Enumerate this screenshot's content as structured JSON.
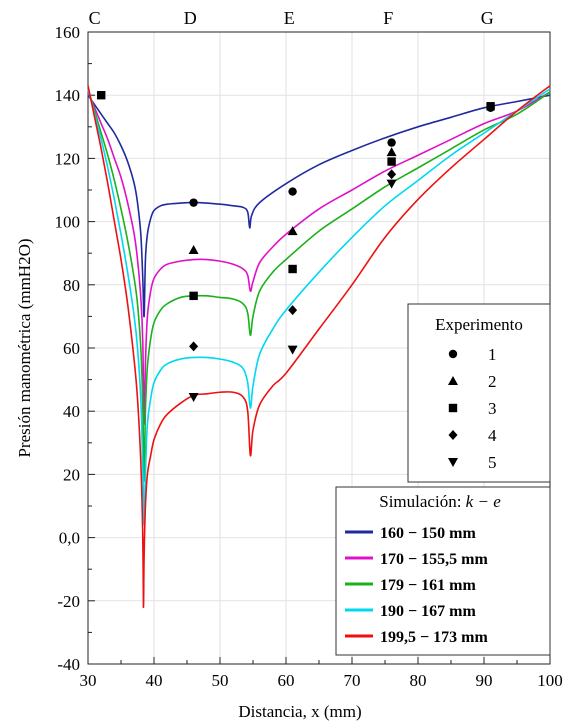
{
  "chart_data": {
    "type": "line",
    "xlabel": "Distancia, x  (mm)",
    "ylabel": "Presión manométrica  (mmH2O)",
    "xlim": [
      30,
      100
    ],
    "ylim": [
      -40,
      160
    ],
    "x_ticks": [
      30,
      40,
      50,
      60,
      70,
      80,
      90,
      100
    ],
    "y_ticks": [
      -40,
      -20,
      0,
      20,
      40,
      60,
      80,
      100,
      120,
      140,
      160
    ],
    "x_tick_labels": [
      "30",
      "40",
      "50",
      "60",
      "70",
      "80",
      "90",
      "100"
    ],
    "y_tick_labels": [
      "-40",
      "-20",
      "0,0",
      "20",
      "40",
      "60",
      "80",
      "100",
      "120",
      "140",
      "160"
    ],
    "section_labels": [
      {
        "label": "C",
        "x": 31
      },
      {
        "label": "D",
        "x": 45.5
      },
      {
        "label": "E",
        "x": 60.5
      },
      {
        "label": "F",
        "x": 75.5
      },
      {
        "label": "G",
        "x": 90.5
      }
    ],
    "grid": true,
    "experiment_legend": {
      "title": "Experimento",
      "placement": "right",
      "entries": [
        {
          "label": "1",
          "marker": "circle"
        },
        {
          "label": "2",
          "marker": "triangle-up"
        },
        {
          "label": "3",
          "marker": "square"
        },
        {
          "label": "4",
          "marker": "diamond"
        },
        {
          "label": "5",
          "marker": "triangle-down"
        }
      ]
    },
    "simulation_legend": {
      "title_text": "Simulación: ",
      "title_math": "k − e",
      "placement": "bottom-right"
    },
    "series": [
      {
        "name": "160 − 150 mm",
        "color": "#1f2a9e",
        "x": [
          30,
          31,
          32,
          33,
          34,
          35,
          36,
          37,
          37.5,
          38,
          38.3,
          38.5,
          38.7,
          39,
          39.5,
          40,
          41,
          42,
          43,
          45,
          47,
          50,
          52,
          53.5,
          54.2,
          54.5,
          54.8,
          56,
          60,
          65,
          70,
          75,
          80,
          85,
          90,
          95,
          100
        ],
        "y": [
          140,
          137,
          134,
          131,
          128,
          124,
          119,
          112,
          106,
          96,
          82,
          70,
          88,
          96,
          101,
          103.5,
          105,
          105.5,
          105.7,
          106,
          106,
          105.5,
          105,
          104.5,
          103,
          98,
          102,
          106,
          112,
          118,
          122.5,
          126.5,
          130,
          133,
          136,
          138,
          140
        ]
      },
      {
        "name": "170 − 155,5 mm",
        "color": "#e010c8",
        "x": [
          30,
          31,
          32,
          33,
          34,
          35,
          36,
          37,
          37.5,
          38,
          38.3,
          38.5,
          38.7,
          39,
          39.5,
          40,
          41,
          42,
          44,
          46,
          48,
          50,
          52,
          53.5,
          54.2,
          54.6,
          55,
          56,
          58,
          60,
          65,
          70,
          75,
          80,
          85,
          90,
          95,
          100
        ],
        "y": [
          141,
          136,
          131,
          126,
          120,
          114,
          106,
          96,
          88,
          76,
          62,
          36,
          55,
          70,
          78,
          82,
          85,
          86.5,
          87.5,
          88,
          88,
          87.5,
          86.5,
          85,
          83,
          78,
          81,
          87,
          92,
          96,
          104,
          110,
          116,
          121,
          126,
          131,
          135,
          141
        ]
      },
      {
        "name": "179 − 161 mm",
        "color": "#1ab21a",
        "x": [
          30,
          31,
          32,
          33,
          34,
          35,
          36,
          37,
          37.5,
          38,
          38.3,
          38.5,
          38.7,
          39,
          39.5,
          40,
          41,
          42,
          44,
          46,
          48,
          50,
          52,
          53.5,
          54.2,
          54.6,
          55,
          56,
          58,
          60,
          65,
          70,
          75,
          80,
          85,
          90,
          95,
          100
        ],
        "y": [
          142,
          135,
          128,
          121,
          113,
          104,
          94,
          82,
          74,
          60,
          42,
          18,
          40,
          54,
          63,
          68,
          72,
          74,
          76,
          76.5,
          76.5,
          76,
          75.5,
          74,
          71,
          64,
          70,
          78,
          84,
          88,
          97,
          104,
          111,
          117,
          123,
          129,
          134,
          141
        ]
      },
      {
        "name": "190 − 167 mm",
        "color": "#00d8f0",
        "x": [
          30,
          31,
          32,
          33,
          34,
          35,
          36,
          37,
          37.5,
          38,
          38.3,
          38.5,
          38.7,
          39,
          39.5,
          40,
          41,
          42,
          44,
          46,
          48,
          50,
          52,
          53.5,
          54.2,
          54.6,
          55,
          56,
          58,
          60,
          65,
          70,
          75,
          80,
          85,
          90,
          95,
          100
        ],
        "y": [
          142,
          134,
          126,
          117,
          107,
          96,
          84,
          70,
          60,
          44,
          22,
          4,
          20,
          36,
          44,
          49,
          53,
          55,
          56.5,
          57,
          57,
          56.5,
          55.5,
          53.5,
          49,
          41,
          48,
          58,
          66,
          72,
          84,
          95,
          105,
          113,
          121,
          128,
          135,
          142
        ]
      },
      {
        "name": "199,5 − 173 mm",
        "color": "#ee1010",
        "x": [
          30,
          31,
          32,
          33,
          34,
          35,
          36,
          37,
          37.5,
          38,
          38.3,
          38.4,
          38.5,
          38.7,
          39,
          39.5,
          40,
          41,
          42,
          44,
          46,
          48,
          50,
          52,
          53.5,
          54.2,
          54.6,
          55,
          56,
          58,
          60,
          65,
          70,
          75,
          80,
          85,
          90,
          95,
          100
        ],
        "y": [
          143,
          133,
          123,
          112,
          100,
          88,
          74,
          56,
          44,
          24,
          0,
          -22,
          -6,
          10,
          20,
          26,
          31,
          36,
          39,
          42.5,
          45,
          45.5,
          46,
          46,
          44.5,
          40,
          26,
          34,
          42,
          48,
          52,
          66,
          80,
          95,
          107,
          117,
          126,
          135,
          143
        ]
      }
    ],
    "experiments": [
      {
        "label": "1",
        "marker": "circle",
        "points": [
          [
            46,
            106
          ],
          [
            61,
            109.5
          ],
          [
            76,
            125
          ],
          [
            91,
            136
          ]
        ]
      },
      {
        "label": "2",
        "marker": "triangle-up",
        "points": [
          [
            46,
            91
          ],
          [
            61,
            97
          ],
          [
            76,
            122
          ]
        ]
      },
      {
        "label": "3",
        "marker": "square",
        "points": [
          [
            32,
            140
          ],
          [
            46,
            76.5
          ],
          [
            61,
            85
          ],
          [
            76,
            119
          ],
          [
            91,
            136.5
          ]
        ]
      },
      {
        "label": "4",
        "marker": "diamond",
        "points": [
          [
            46,
            60.5
          ],
          [
            61,
            72
          ],
          [
            76,
            115
          ]
        ]
      },
      {
        "label": "5",
        "marker": "triangle-down",
        "points": [
          [
            46,
            44.5
          ],
          [
            61,
            59.5
          ],
          [
            76,
            112
          ]
        ]
      }
    ]
  }
}
